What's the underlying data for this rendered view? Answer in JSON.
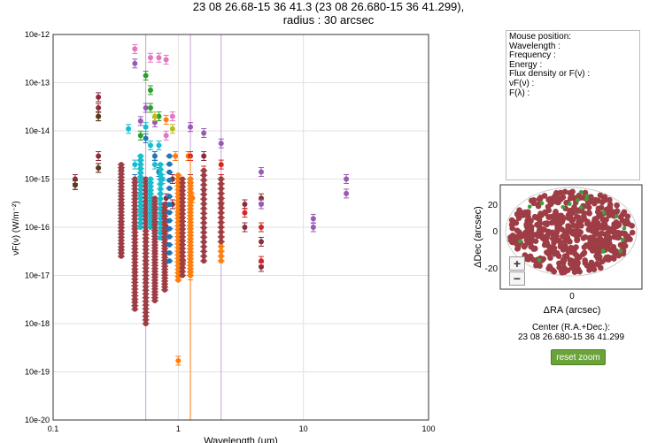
{
  "header": {
    "title_line1": "23 08 26.68-15 36 41.3 (23 08 26.680-15 36 41.299),",
    "title_line2": "radius : 30 arcsec"
  },
  "info": {
    "lines": [
      "Mouse position:",
      "Wavelength :",
      "Frequency :",
      "Energy :",
      "Flux density or F(ν) :",
      "νF(ν) :",
      "F(λ) :"
    ]
  },
  "sky": {
    "xlabel": "ΔRA (arcsec)",
    "ylabel": "ΔDec (arcsec)",
    "x_ticks": [
      "0"
    ],
    "y_ticks": [
      "20",
      "0",
      "-20"
    ],
    "zoom_in": "+",
    "zoom_out": "−",
    "point_color": "#9e3d45",
    "highlight_color": "#3aa03a"
  },
  "center": {
    "label": "Center (R.A.+Dec.):",
    "value": "23 08 26.680-15 36 41.299"
  },
  "buttons": {
    "reset_zoom": "reset zoom"
  },
  "chart_data": {
    "type": "scatter",
    "xlabel": "Wavelength (μm)",
    "ylabel": "νF(ν) (W/m⁻²)",
    "x_scale": "log",
    "y_scale": "log",
    "xlim": [
      0.1,
      100
    ],
    "ylim": [
      1e-20,
      1e-12
    ],
    "x_ticks": [
      "0.1",
      "1",
      "10",
      "100"
    ],
    "y_ticks": [
      "10e-20",
      "10e-19",
      "10e-18",
      "10e-17",
      "10e-16",
      "10e-15",
      "10e-14",
      "10e-13",
      "10e-12"
    ],
    "vertical_lines_um": [
      0.55,
      1.25,
      2.2
    ],
    "series": [
      {
        "color": "#8e2c3a",
        "points": [
          [
            0.15,
            7.5e-16
          ],
          [
            0.15,
            1e-15
          ],
          [
            0.23,
            5e-14
          ],
          [
            0.23,
            3e-14
          ],
          [
            0.23,
            2e-14
          ],
          [
            0.23,
            3e-15
          ],
          [
            0.23,
            1.7e-15
          ],
          [
            0.35,
            3e-16
          ],
          [
            0.35,
            1e-16
          ],
          [
            0.35,
            3e-17
          ],
          [
            0.45,
            1e-16
          ],
          [
            0.45,
            3e-17
          ],
          [
            0.45,
            1e-17
          ],
          [
            0.45,
            3e-18
          ],
          [
            0.55,
            2e-16
          ],
          [
            0.55,
            5e-17
          ],
          [
            0.55,
            2e-17
          ],
          [
            0.65,
            1e-16
          ],
          [
            0.65,
            3e-17
          ],
          [
            0.65,
            1e-17
          ],
          [
            0.8,
            4e-16
          ],
          [
            0.8,
            1e-16
          ],
          [
            0.9,
            1e-15
          ],
          [
            0.9,
            3e-16
          ],
          [
            1.25,
            1e-15
          ],
          [
            1.6,
            3e-15
          ],
          [
            1.6,
            6e-16
          ],
          [
            2.2,
            1e-15
          ],
          [
            2.2,
            3e-16
          ],
          [
            3.4,
            3e-16
          ],
          [
            3.4,
            1e-16
          ],
          [
            4.6,
            4e-16
          ],
          [
            4.6,
            5e-17
          ],
          [
            4.6,
            1.5e-17
          ]
        ]
      },
      {
        "color": "#5a3b1f",
        "points": [
          [
            0.23,
            2e-14
          ],
          [
            0.23,
            1.7e-15
          ],
          [
            0.15,
            7.5e-16
          ]
        ]
      },
      {
        "color": "#9b59b6",
        "points": [
          [
            0.45,
            2.5e-13
          ],
          [
            0.5,
            1.6e-14
          ],
          [
            0.55,
            3e-14
          ],
          [
            0.65,
            1.5e-14
          ],
          [
            1.25,
            1.2e-14
          ],
          [
            1.6,
            9e-15
          ],
          [
            2.2,
            5.5e-15
          ],
          [
            4.6,
            1.4e-15
          ],
          [
            4.6,
            3e-16
          ],
          [
            12,
            1.5e-16
          ],
          [
            12,
            1e-16
          ],
          [
            22,
            1e-15
          ],
          [
            22,
            5e-16
          ]
        ]
      },
      {
        "color": "#e377c2",
        "points": [
          [
            0.45,
            5e-13
          ],
          [
            0.6,
            3.3e-13
          ],
          [
            0.7,
            3.3e-13
          ],
          [
            0.8,
            3e-13
          ],
          [
            0.9,
            2e-14
          ],
          [
            0.8,
            8e-15
          ]
        ]
      },
      {
        "color": "#2ca02c",
        "points": [
          [
            0.55,
            1.4e-13
          ],
          [
            0.6,
            7e-14
          ],
          [
            0.6,
            3e-14
          ],
          [
            0.5,
            8e-15
          ],
          [
            0.7,
            2e-14
          ]
        ]
      },
      {
        "color": "#17becf",
        "points": [
          [
            0.4,
            1.1e-14
          ],
          [
            0.55,
            1.2e-14
          ],
          [
            0.6,
            5e-15
          ],
          [
            0.7,
            5e-15
          ],
          [
            0.65,
            2e-15
          ],
          [
            0.45,
            2e-15
          ],
          [
            0.75,
            1e-15
          ],
          [
            0.75,
            2e-16
          ]
        ]
      },
      {
        "color": "#1f77b4",
        "points": [
          [
            0.35,
            1.6e-15
          ],
          [
            0.45,
            1e-15
          ],
          [
            0.55,
            7e-15
          ],
          [
            0.65,
            3e-15
          ],
          [
            0.7,
            1.4e-15
          ]
        ]
      },
      {
        "color": "#ff7f0e",
        "points": [
          [
            0.8,
            1.7e-14
          ],
          [
            0.95,
            3e-15
          ],
          [
            1.0,
            2e-16
          ],
          [
            1.1,
            2e-17
          ],
          [
            1.2,
            3e-15
          ],
          [
            1.3,
            4e-16
          ],
          [
            1.0,
            1.7e-19
          ],
          [
            1.25,
            1e-17
          ]
        ]
      },
      {
        "color": "#d62728",
        "points": [
          [
            1.25,
            3e-15
          ],
          [
            1.6,
            1.5e-15
          ],
          [
            2.2,
            2e-15
          ],
          [
            2.2,
            1e-15
          ],
          [
            2.2,
            5e-16
          ],
          [
            3.4,
            2e-16
          ],
          [
            4.6,
            1e-16
          ],
          [
            4.6,
            2e-17
          ]
        ]
      },
      {
        "color": "#bcbd22",
        "points": [
          [
            0.65,
            2e-14
          ],
          [
            0.9,
            1.1e-14
          ]
        ]
      }
    ]
  }
}
